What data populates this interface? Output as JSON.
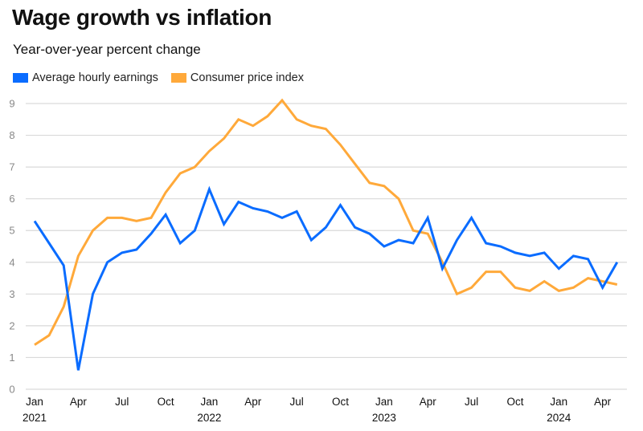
{
  "title": "Wage growth vs inflation",
  "subtitle": "Year-over-year percent change",
  "colors": {
    "earnings": "#0a6cff",
    "cpi": "#ffa93a",
    "grid": "#d9d9d9"
  },
  "chart_data": {
    "type": "line",
    "title": "Wage growth vs inflation",
    "subtitle": "Year-over-year percent change",
    "xlabel": "",
    "ylabel": "",
    "ylim": [
      0,
      9
    ],
    "yticks": [
      0,
      1,
      2,
      3,
      4,
      5,
      6,
      7,
      8,
      9
    ],
    "grid": true,
    "legend_position": "top-left",
    "x": [
      "2021-01",
      "2021-02",
      "2021-03",
      "2021-04",
      "2021-05",
      "2021-06",
      "2021-07",
      "2021-08",
      "2021-09",
      "2021-10",
      "2021-11",
      "2021-12",
      "2022-01",
      "2022-02",
      "2022-03",
      "2022-04",
      "2022-05",
      "2022-06",
      "2022-07",
      "2022-08",
      "2022-09",
      "2022-10",
      "2022-11",
      "2022-12",
      "2023-01",
      "2023-02",
      "2023-03",
      "2023-04",
      "2023-05",
      "2023-06",
      "2023-07",
      "2023-08",
      "2023-09",
      "2023-10",
      "2023-11",
      "2023-12",
      "2024-01",
      "2024-02",
      "2024-03",
      "2024-04",
      "2024-05"
    ],
    "xticks": [
      {
        "index": 0,
        "label": "Jan",
        "year": "2021"
      },
      {
        "index": 3,
        "label": "Apr",
        "year": ""
      },
      {
        "index": 6,
        "label": "Jul",
        "year": ""
      },
      {
        "index": 9,
        "label": "Oct",
        "year": ""
      },
      {
        "index": 12,
        "label": "Jan",
        "year": "2022"
      },
      {
        "index": 15,
        "label": "Apr",
        "year": ""
      },
      {
        "index": 18,
        "label": "Jul",
        "year": ""
      },
      {
        "index": 21,
        "label": "Oct",
        "year": ""
      },
      {
        "index": 24,
        "label": "Jan",
        "year": "2023"
      },
      {
        "index": 27,
        "label": "Apr",
        "year": ""
      },
      {
        "index": 30,
        "label": "Jul",
        "year": ""
      },
      {
        "index": 33,
        "label": "Oct",
        "year": ""
      },
      {
        "index": 36,
        "label": "Jan",
        "year": "2024"
      },
      {
        "index": 39,
        "label": "Apr",
        "year": ""
      }
    ],
    "series": [
      {
        "name": "Average hourly earnings",
        "key": "earnings",
        "values": [
          5.3,
          4.6,
          3.9,
          0.6,
          3.0,
          4.0,
          4.3,
          4.4,
          4.9,
          5.5,
          4.6,
          5.0,
          6.3,
          5.2,
          5.9,
          5.7,
          5.6,
          5.4,
          5.6,
          4.7,
          5.1,
          5.8,
          5.1,
          4.9,
          4.5,
          4.7,
          4.6,
          5.4,
          3.8,
          4.7,
          5.4,
          4.6,
          4.5,
          4.3,
          4.2,
          4.3,
          3.8,
          4.2,
          4.1,
          3.2,
          4.0
        ]
      },
      {
        "name": "Consumer price index",
        "key": "cpi",
        "values": [
          1.4,
          1.7,
          2.6,
          4.2,
          5.0,
          5.4,
          5.4,
          5.3,
          5.4,
          6.2,
          6.8,
          7.0,
          7.5,
          7.9,
          8.5,
          8.3,
          8.6,
          9.1,
          8.5,
          8.3,
          8.2,
          7.7,
          7.1,
          6.5,
          6.4,
          6.0,
          5.0,
          4.9,
          4.0,
          3.0,
          3.2,
          3.7,
          3.7,
          3.2,
          3.1,
          3.4,
          3.1,
          3.2,
          3.5,
          3.4,
          3.3
        ]
      }
    ]
  }
}
